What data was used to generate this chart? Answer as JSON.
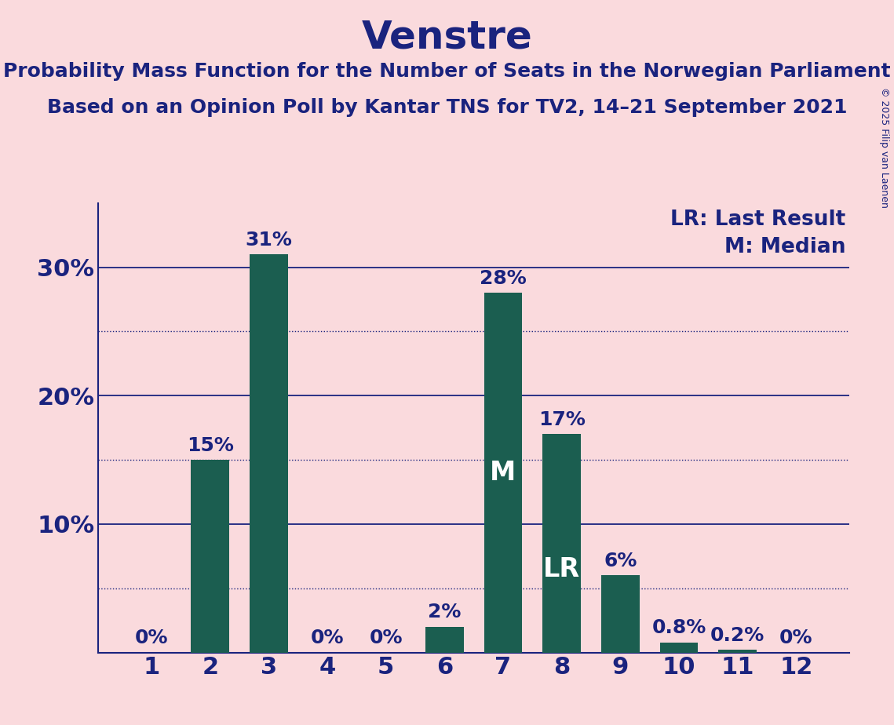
{
  "title": "Venstre",
  "subtitle1": "Probability Mass Function for the Number of Seats in the Norwegian Parliament",
  "subtitle2": "Based on an Opinion Poll by Kantar TNS for TV2, 14–21 September 2021",
  "copyright": "© 2025 Filip van Laenen",
  "categories": [
    1,
    2,
    3,
    4,
    5,
    6,
    7,
    8,
    9,
    10,
    11,
    12
  ],
  "values": [
    0.0,
    15.0,
    31.0,
    0.0,
    0.0,
    2.0,
    28.0,
    17.0,
    6.0,
    0.8,
    0.2,
    0.0
  ],
  "bar_color": "#1B5E50",
  "background_color": "#FADADD",
  "text_color": "#1A237E",
  "bar_labels": [
    "0%",
    "15%",
    "31%",
    "0%",
    "0%",
    "2%",
    "28%",
    "17%",
    "6%",
    "0.8%",
    "0.2%",
    "0%"
  ],
  "median_bar_index": 6,
  "lr_bar_index": 7,
  "ylim": [
    0,
    35
  ],
  "yticks": [
    10,
    20,
    30
  ],
  "ytick_labels": [
    "10%",
    "20%",
    "30%"
  ],
  "dotted_lines": [
    5,
    15,
    25
  ],
  "legend_lr": "LR: Last Result",
  "legend_m": "M: Median",
  "title_fontsize": 36,
  "subtitle_fontsize": 18,
  "ytick_fontsize": 22,
  "xtick_fontsize": 22,
  "bar_label_fontsize": 18,
  "legend_fontsize": 19,
  "inside_label_fontsize": 24,
  "copyright_fontsize": 9
}
